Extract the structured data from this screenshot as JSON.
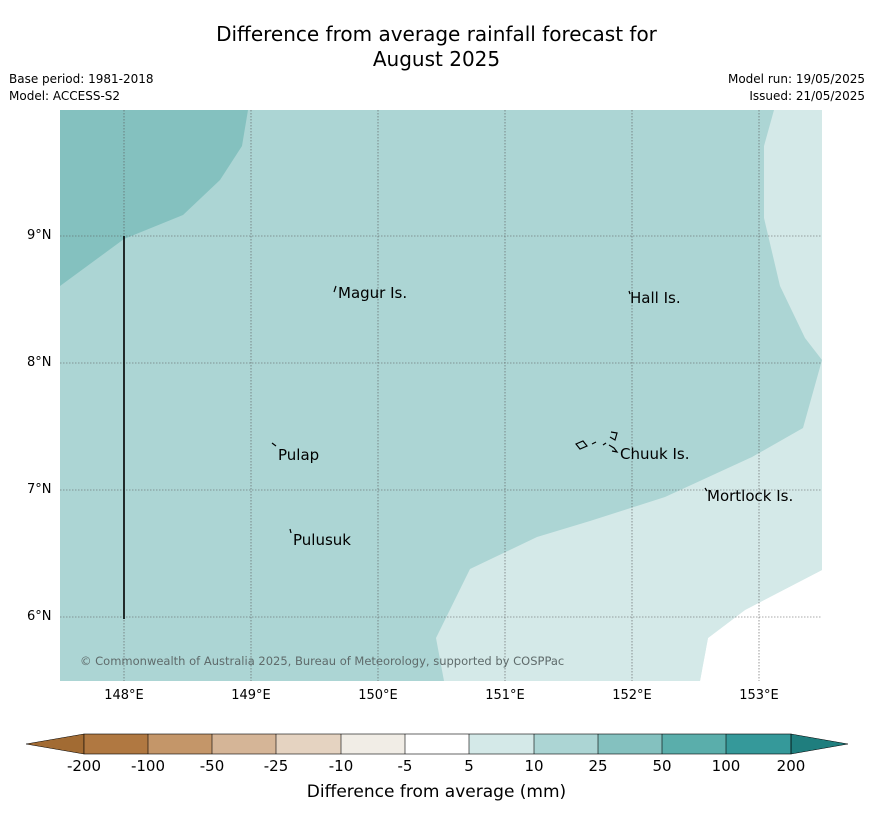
{
  "title_line1": "Difference from average rainfall forecast for",
  "title_line2": "August 2025",
  "base_period": "Base period: 1981-2018",
  "model": "Model: ACCESS-S2",
  "model_run": "Model run: 19/05/2025",
  "issued": "Issued: 21/05/2025",
  "copyright": "© Commonwealth of Australia 2025, Bureau of Meteorology, supported by COSPPac",
  "colorbar_title": "Difference from average (mm)",
  "colorbar": {
    "labels": [
      "-200",
      "-100",
      "-50",
      "-25",
      "-10",
      "-5",
      "5",
      "10",
      "25",
      "50",
      "100",
      "200"
    ],
    "colors": [
      "#a26b33",
      "#b07841",
      "#c49669",
      "#d5b597",
      "#e5d3c1",
      "#f1ede6",
      "#ffffff",
      "#d4e9e8",
      "#acd5d4",
      "#84c1bf",
      "#5aaeab",
      "#35999a",
      "#1f7e7e"
    ]
  },
  "lat_labels": [
    "9°N",
    "8°N",
    "7°N",
    "6°N"
  ],
  "lon_labels": [
    "148°E",
    "149°E",
    "150°E",
    "151°E",
    "152°E",
    "153°E"
  ],
  "places": {
    "magur": "Magur Is.",
    "hall": "Hall Is.",
    "pulap": "Pulap",
    "chuuk": "Chuuk Is.",
    "mortlock": "Mortlock Is.",
    "pulusuk": "Pulusuk"
  }
}
